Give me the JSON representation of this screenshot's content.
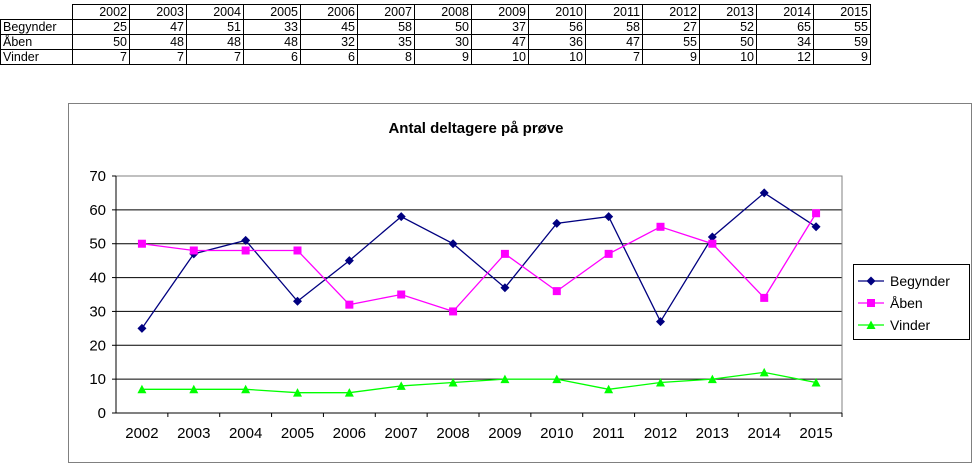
{
  "table": {
    "years": [
      "2002",
      "2003",
      "2004",
      "2005",
      "2006",
      "2007",
      "2008",
      "2009",
      "2010",
      "2011",
      "2012",
      "2013",
      "2014",
      "2015"
    ],
    "rows": [
      {
        "label": "Begynder",
        "values": [
          "25",
          "47",
          "51",
          "33",
          "45",
          "58",
          "50",
          "37",
          "56",
          "58",
          "27",
          "52",
          "65",
          "55"
        ]
      },
      {
        "label": "Åben",
        "values": [
          "50",
          "48",
          "48",
          "48",
          "32",
          "35",
          "30",
          "47",
          "36",
          "47",
          "55",
          "50",
          "34",
          "59"
        ]
      },
      {
        "label": "Vinder",
        "values": [
          "7",
          "7",
          "7",
          "6",
          "6",
          "8",
          "9",
          "10",
          "10",
          "7",
          "9",
          "10",
          "12",
          "9"
        ]
      }
    ]
  },
  "chart_data": {
    "type": "line",
    "title": "Antal deltagere på prøve",
    "categories": [
      "2002",
      "2003",
      "2004",
      "2005",
      "2006",
      "2007",
      "2008",
      "2009",
      "2010",
      "2011",
      "2012",
      "2013",
      "2014",
      "2015"
    ],
    "ylim": [
      0,
      70
    ],
    "yticks": [
      "0",
      "10",
      "20",
      "30",
      "40",
      "50",
      "60",
      "70"
    ],
    "grid": true,
    "legend_position": "right",
    "series": [
      {
        "name": "Begynder",
        "color": "#000080",
        "marker": "diamond",
        "values": [
          25,
          47,
          51,
          33,
          45,
          58,
          50,
          37,
          56,
          58,
          27,
          52,
          65,
          55
        ]
      },
      {
        "name": "Åben",
        "color": "#FF00FF",
        "marker": "square",
        "values": [
          50,
          48,
          48,
          48,
          32,
          35,
          30,
          47,
          36,
          47,
          55,
          50,
          34,
          59
        ]
      },
      {
        "name": "Vinder",
        "color": "#00FF00",
        "marker": "triangle",
        "values": [
          7,
          7,
          7,
          6,
          6,
          8,
          9,
          10,
          10,
          7,
          9,
          10,
          12,
          9
        ]
      }
    ]
  }
}
